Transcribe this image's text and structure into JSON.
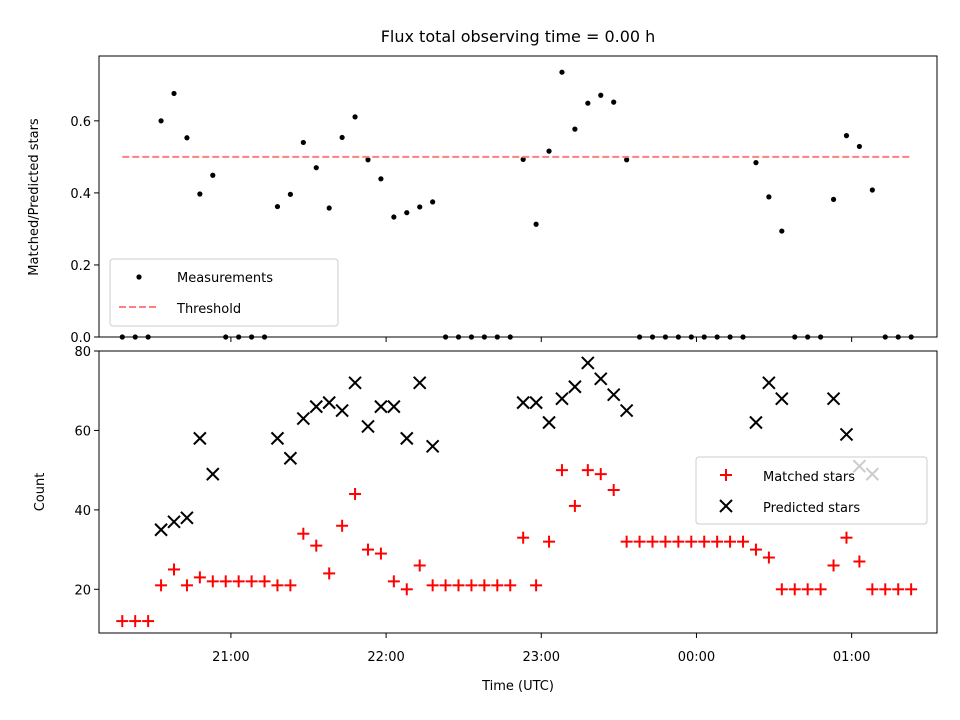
{
  "chart_data": [
    {
      "type": "scatter",
      "title": "Flux total observing time = 0.00 h",
      "ylabel": "Matched/Predicted stars",
      "xlabel": "",
      "ylim": [
        0,
        0.78
      ],
      "yticks": [
        0.0,
        0.2,
        0.4,
        0.6
      ],
      "xticks": [
        "21:00",
        "22:00",
        "23:00",
        "00:00",
        "01:00"
      ],
      "legend": {
        "placement": "lower-left"
      },
      "series": [
        {
          "name": "Measurements",
          "color": "#000000",
          "marker": "dot",
          "points": [
            [
              "20:18",
              0.0
            ],
            [
              "20:23",
              0.0
            ],
            [
              "20:28",
              0.0
            ],
            [
              "20:33",
              0.6
            ],
            [
              "20:38",
              0.676
            ],
            [
              "20:43",
              0.553
            ],
            [
              "20:48",
              0.397
            ],
            [
              "20:53",
              0.449
            ],
            [
              "20:58",
              0.0
            ],
            [
              "21:03",
              0.0
            ],
            [
              "21:08",
              0.0
            ],
            [
              "21:13",
              0.0
            ],
            [
              "21:18",
              0.362
            ],
            [
              "21:23",
              0.396
            ],
            [
              "21:28",
              0.54
            ],
            [
              "21:33",
              0.47
            ],
            [
              "21:38",
              0.358
            ],
            [
              "21:43",
              0.554
            ],
            [
              "21:48",
              0.611
            ],
            [
              "21:53",
              0.492
            ],
            [
              "21:58",
              0.439
            ],
            [
              "22:03",
              0.333
            ],
            [
              "22:08",
              0.345
            ],
            [
              "22:13",
              0.361
            ],
            [
              "22:18",
              0.375
            ],
            [
              "22:23",
              0.0
            ],
            [
              "22:28",
              0.0
            ],
            [
              "22:33",
              0.0
            ],
            [
              "22:38",
              0.0
            ],
            [
              "22:43",
              0.0
            ],
            [
              "22:48",
              0.0
            ],
            [
              "22:53",
              0.493
            ],
            [
              "22:58",
              0.313
            ],
            [
              "23:03",
              0.516
            ],
            [
              "23:08",
              0.735
            ],
            [
              "23:13",
              0.577
            ],
            [
              "23:18",
              0.649
            ],
            [
              "23:23",
              0.671
            ],
            [
              "23:28",
              0.652
            ],
            [
              "23:33",
              0.492
            ],
            [
              "23:38",
              0.0
            ],
            [
              "23:43",
              0.0
            ],
            [
              "23:48",
              0.0
            ],
            [
              "23:53",
              0.0
            ],
            [
              "23:58",
              0.0
            ],
            [
              "00:03",
              0.0
            ],
            [
              "00:08",
              0.0
            ],
            [
              "00:13",
              0.0
            ],
            [
              "00:18",
              0.0
            ],
            [
              "00:23",
              0.484
            ],
            [
              "00:28",
              0.389
            ],
            [
              "00:33",
              0.294
            ],
            [
              "00:38",
              0.0
            ],
            [
              "00:43",
              0.0
            ],
            [
              "00:48",
              0.0
            ],
            [
              "00:53",
              0.382
            ],
            [
              "00:58",
              0.559
            ],
            [
              "01:03",
              0.529
            ],
            [
              "01:08",
              0.408
            ],
            [
              "01:13",
              0.0
            ],
            [
              "01:18",
              0.0
            ],
            [
              "01:23",
              0.0
            ]
          ]
        },
        {
          "name": "Threshold",
          "color": "#ff7f7f",
          "style": "dashed",
          "points": [
            [
              "20:18",
              0.5
            ],
            [
              "01:23",
              0.5
            ]
          ]
        }
      ]
    },
    {
      "type": "scatter",
      "title": "",
      "ylabel": "Count",
      "xlabel": "Time (UTC)",
      "ylim": [
        9,
        80
      ],
      "yticks": [
        20,
        40,
        60,
        80
      ],
      "xticks": [
        "21:00",
        "22:00",
        "23:00",
        "00:00",
        "01:00"
      ],
      "legend": {
        "placement": "center-right"
      },
      "series": [
        {
          "name": "Matched stars",
          "color": "#ff0000",
          "marker": "plus",
          "points": [
            [
              "20:18",
              12
            ],
            [
              "20:23",
              12
            ],
            [
              "20:28",
              12
            ],
            [
              "20:33",
              21
            ],
            [
              "20:38",
              25
            ],
            [
              "20:43",
              21
            ],
            [
              "20:48",
              23
            ],
            [
              "20:53",
              22
            ],
            [
              "20:58",
              22
            ],
            [
              "21:03",
              22
            ],
            [
              "21:08",
              22
            ],
            [
              "21:13",
              22
            ],
            [
              "21:18",
              21
            ],
            [
              "21:23",
              21
            ],
            [
              "21:28",
              34
            ],
            [
              "21:33",
              31
            ],
            [
              "21:38",
              24
            ],
            [
              "21:43",
              36
            ],
            [
              "21:48",
              44
            ],
            [
              "21:53",
              30
            ],
            [
              "21:58",
              29
            ],
            [
              "22:03",
              22
            ],
            [
              "22:08",
              20
            ],
            [
              "22:13",
              26
            ],
            [
              "22:18",
              21
            ],
            [
              "22:23",
              21
            ],
            [
              "22:28",
              21
            ],
            [
              "22:33",
              21
            ],
            [
              "22:38",
              21
            ],
            [
              "22:43",
              21
            ],
            [
              "22:48",
              21
            ],
            [
              "22:53",
              33
            ],
            [
              "22:58",
              21
            ],
            [
              "23:03",
              32
            ],
            [
              "23:08",
              50
            ],
            [
              "23:13",
              41
            ],
            [
              "23:18",
              50
            ],
            [
              "23:23",
              49
            ],
            [
              "23:28",
              45
            ],
            [
              "23:33",
              32
            ],
            [
              "23:38",
              32
            ],
            [
              "23:43",
              32
            ],
            [
              "23:48",
              32
            ],
            [
              "23:53",
              32
            ],
            [
              "23:58",
              32
            ],
            [
              "00:03",
              32
            ],
            [
              "00:08",
              32
            ],
            [
              "00:13",
              32
            ],
            [
              "00:18",
              32
            ],
            [
              "00:23",
              30
            ],
            [
              "00:28",
              28
            ],
            [
              "00:33",
              20
            ],
            [
              "00:38",
              20
            ],
            [
              "00:43",
              20
            ],
            [
              "00:48",
              20
            ],
            [
              "00:53",
              26
            ],
            [
              "00:58",
              33
            ],
            [
              "01:03",
              27
            ],
            [
              "01:08",
              20
            ],
            [
              "01:13",
              20
            ],
            [
              "01:18",
              20
            ],
            [
              "01:23",
              20
            ]
          ]
        },
        {
          "name": "Predicted stars",
          "color": "#000000",
          "marker": "x",
          "points": [
            [
              "20:33",
              35
            ],
            [
              "20:38",
              37
            ],
            [
              "20:43",
              38
            ],
            [
              "20:48",
              58
            ],
            [
              "20:53",
              49
            ],
            [
              "21:18",
              58
            ],
            [
              "21:23",
              53
            ],
            [
              "21:28",
              63
            ],
            [
              "21:33",
              66
            ],
            [
              "21:38",
              67
            ],
            [
              "21:43",
              65
            ],
            [
              "21:48",
              72
            ],
            [
              "21:53",
              61
            ],
            [
              "21:58",
              66
            ],
            [
              "22:03",
              66
            ],
            [
              "22:08",
              58
            ],
            [
              "22:13",
              72
            ],
            [
              "22:18",
              56
            ],
            [
              "22:53",
              67
            ],
            [
              "22:58",
              67
            ],
            [
              "23:03",
              62
            ],
            [
              "23:08",
              68
            ],
            [
              "23:13",
              71
            ],
            [
              "23:18",
              77
            ],
            [
              "23:23",
              73
            ],
            [
              "23:28",
              69
            ],
            [
              "23:33",
              65
            ],
            [
              "00:23",
              62
            ],
            [
              "00:28",
              72
            ],
            [
              "00:33",
              68
            ],
            [
              "00:53",
              68
            ],
            [
              "00:58",
              59
            ],
            [
              "01:03",
              51
            ],
            [
              "01:08",
              49
            ]
          ]
        }
      ]
    }
  ]
}
